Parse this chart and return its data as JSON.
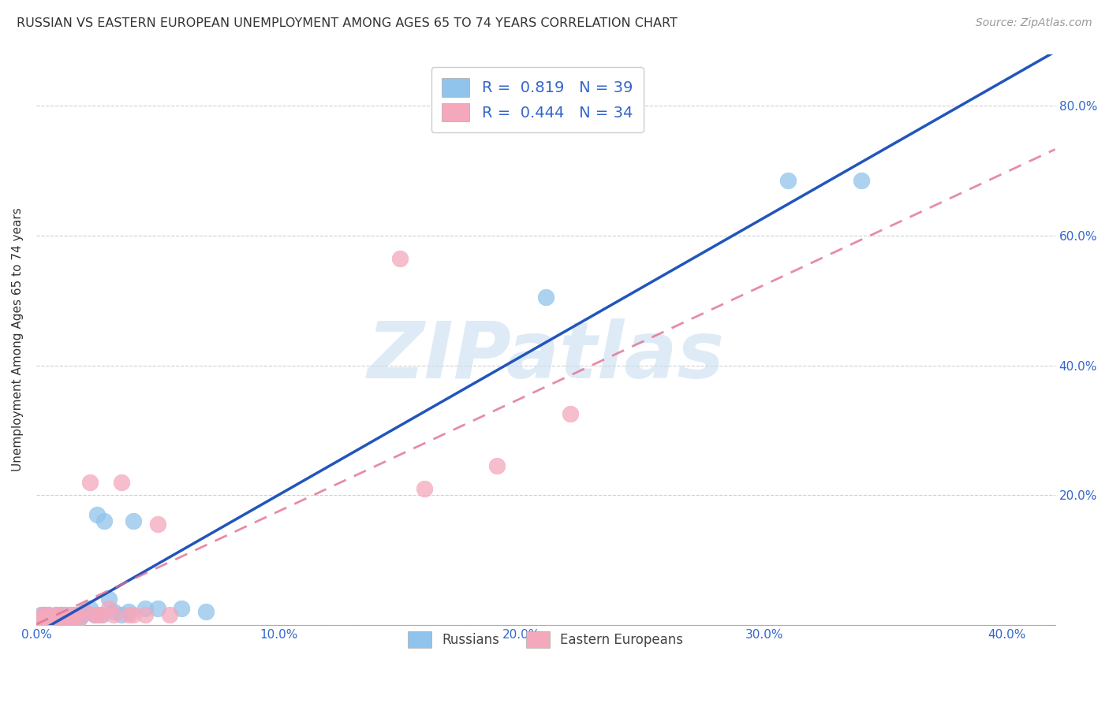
{
  "title": "RUSSIAN VS EASTERN EUROPEAN UNEMPLOYMENT AMONG AGES 65 TO 74 YEARS CORRELATION CHART",
  "source": "Source: ZipAtlas.com",
  "ylabel": "Unemployment Among Ages 65 to 74 years",
  "xlim": [
    0.0,
    0.42
  ],
  "ylim": [
    0.0,
    0.88
  ],
  "xticks": [
    0.0,
    0.1,
    0.2,
    0.3,
    0.4
  ],
  "xtick_labels": [
    "0.0%",
    "10.0%",
    "20.0%",
    "30.0%",
    "40.0%"
  ],
  "yticks": [
    0.0,
    0.2,
    0.4,
    0.6,
    0.8
  ],
  "ytick_labels": [
    "",
    "20.0%",
    "40.0%",
    "60.0%",
    "80.0%"
  ],
  "background_color": "#ffffff",
  "grid_color": "#d0d0d0",
  "watermark_text": "ZIPatlas",
  "watermark_color": "#C8DFF2",
  "russian_color": "#90C4EC",
  "eastern_color": "#F4A8BC",
  "russian_line_color": "#2255BB",
  "eastern_line_color": "#E07090",
  "russian_R": 0.819,
  "russian_N": 39,
  "eastern_R": 0.444,
  "eastern_N": 34,
  "text_color": "#3366CC",
  "title_color": "#333333",
  "russians_x": [
    0.001,
    0.002,
    0.002,
    0.003,
    0.003,
    0.004,
    0.005,
    0.005,
    0.006,
    0.007,
    0.008,
    0.009,
    0.01,
    0.011,
    0.012,
    0.013,
    0.015,
    0.016,
    0.017,
    0.018,
    0.019,
    0.02,
    0.022,
    0.024,
    0.025,
    0.027,
    0.028,
    0.03,
    0.032,
    0.035,
    0.038,
    0.04,
    0.045,
    0.05,
    0.06,
    0.07,
    0.21,
    0.31,
    0.34
  ],
  "russians_y": [
    0.01,
    0.01,
    0.015,
    0.01,
    0.015,
    0.01,
    0.01,
    0.015,
    0.01,
    0.01,
    0.015,
    0.01,
    0.015,
    0.01,
    0.015,
    0.01,
    0.015,
    0.01,
    0.015,
    0.01,
    0.015,
    0.02,
    0.025,
    0.015,
    0.17,
    0.015,
    0.16,
    0.04,
    0.02,
    0.015,
    0.02,
    0.16,
    0.025,
    0.025,
    0.025,
    0.02,
    0.505,
    0.685,
    0.685
  ],
  "eastern_x": [
    0.001,
    0.002,
    0.003,
    0.004,
    0.005,
    0.005,
    0.006,
    0.007,
    0.008,
    0.009,
    0.01,
    0.011,
    0.012,
    0.014,
    0.015,
    0.016,
    0.018,
    0.02,
    0.022,
    0.024,
    0.025,
    0.027,
    0.03,
    0.032,
    0.035,
    0.038,
    0.04,
    0.045,
    0.05,
    0.055,
    0.15,
    0.16,
    0.19,
    0.22
  ],
  "eastern_y": [
    0.01,
    0.01,
    0.015,
    0.01,
    0.01,
    0.015,
    0.01,
    0.01,
    0.015,
    0.01,
    0.015,
    0.01,
    0.01,
    0.015,
    0.01,
    0.015,
    0.01,
    0.02,
    0.22,
    0.015,
    0.015,
    0.015,
    0.025,
    0.015,
    0.22,
    0.015,
    0.015,
    0.015,
    0.155,
    0.015,
    0.565,
    0.21,
    0.245,
    0.325
  ]
}
